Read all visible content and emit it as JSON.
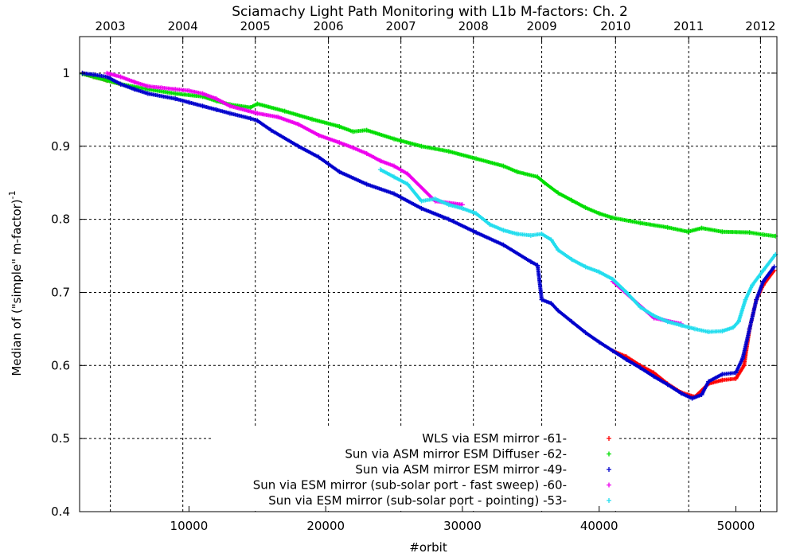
{
  "chart_data": {
    "type": "scatter",
    "title": "Sciamachy Light Path Monitoring with L1b M-factors: Ch. 2",
    "xlabel": "#orbit",
    "ylabel_main": "Median of (\"simple\" m-factor)",
    "ylabel_sup": "-1",
    "xlim": [
      2000,
      53000
    ],
    "ylim": [
      0.4,
      1.05
    ],
    "x_ticks": [
      10000,
      20000,
      30000,
      40000,
      50000
    ],
    "x_tick_labels": [
      "10000",
      "20000",
      "30000",
      "40000",
      "50000"
    ],
    "y_ticks": [
      0.4,
      0.5,
      0.6,
      0.7,
      0.8,
      0.9,
      1.0
    ],
    "y_tick_labels": [
      "0.4",
      "0.5",
      "0.6",
      "0.7",
      "0.8",
      "0.9",
      "1"
    ],
    "top_axis": {
      "labels": [
        "2003",
        "2004",
        "2005",
        "2006",
        "2007",
        "2008",
        "2009",
        "2010",
        "2011",
        "2012"
      ],
      "orbits": [
        4250,
        9550,
        14850,
        20200,
        25500,
        30800,
        35800,
        41200,
        46550,
        51800
      ]
    },
    "grid": true,
    "legend_position": "bottom-right",
    "series": [
      {
        "name": "WLS via ESM mirror -61-",
        "color": "#ff0000",
        "points": [
          [
            2200,
            1.0
          ],
          [
            3000,
            0.995
          ],
          [
            4000,
            0.99
          ],
          [
            5000,
            0.985
          ],
          [
            41000,
            0.62
          ],
          [
            42000,
            0.612
          ],
          [
            43000,
            0.6
          ],
          [
            44000,
            0.59
          ],
          [
            45000,
            0.575
          ],
          [
            46000,
            0.563
          ],
          [
            47000,
            0.557
          ],
          [
            48000,
            0.575
          ],
          [
            49000,
            0.58
          ],
          [
            50000,
            0.582
          ],
          [
            50600,
            0.6
          ],
          [
            51000,
            0.65
          ],
          [
            51500,
            0.69
          ],
          [
            52000,
            0.71
          ],
          [
            52800,
            0.73
          ]
        ]
      },
      {
        "name": "Sun via ASM mirror  ESM Diffuser -62-",
        "color": "#00dd00",
        "points": [
          [
            2200,
            0.999
          ],
          [
            3000,
            0.995
          ],
          [
            4000,
            0.99
          ],
          [
            5000,
            0.985
          ],
          [
            7000,
            0.978
          ],
          [
            9000,
            0.972
          ],
          [
            11000,
            0.968
          ],
          [
            12000,
            0.962
          ],
          [
            13000,
            0.957
          ],
          [
            14500,
            0.953
          ],
          [
            15000,
            0.958
          ],
          [
            17000,
            0.948
          ],
          [
            19000,
            0.937
          ],
          [
            21000,
            0.927
          ],
          [
            22000,
            0.92
          ],
          [
            23000,
            0.922
          ],
          [
            25000,
            0.91
          ],
          [
            27000,
            0.9
          ],
          [
            29000,
            0.893
          ],
          [
            31000,
            0.883
          ],
          [
            33000,
            0.873
          ],
          [
            34000,
            0.865
          ],
          [
            35500,
            0.858
          ],
          [
            36000,
            0.85
          ],
          [
            37000,
            0.836
          ],
          [
            38000,
            0.826
          ],
          [
            39000,
            0.816
          ],
          [
            40000,
            0.808
          ],
          [
            41000,
            0.802
          ],
          [
            43000,
            0.795
          ],
          [
            45000,
            0.789
          ],
          [
            46500,
            0.783
          ],
          [
            47500,
            0.788
          ],
          [
            49000,
            0.783
          ],
          [
            51000,
            0.782
          ],
          [
            52000,
            0.779
          ],
          [
            52900,
            0.777
          ]
        ]
      },
      {
        "name": "Sun via ASM mirror  ESM mirror -49-",
        "color": "#0000cc",
        "points": [
          [
            2200,
            1.0
          ],
          [
            3000,
            0.998
          ],
          [
            4000,
            0.995
          ],
          [
            5000,
            0.985
          ],
          [
            6000,
            0.978
          ],
          [
            7000,
            0.972
          ],
          [
            9000,
            0.965
          ],
          [
            10000,
            0.96
          ],
          [
            11000,
            0.955
          ],
          [
            12000,
            0.95
          ],
          [
            13000,
            0.945
          ],
          [
            14500,
            0.938
          ],
          [
            15000,
            0.935
          ],
          [
            16000,
            0.922
          ],
          [
            18000,
            0.9
          ],
          [
            19500,
            0.885
          ],
          [
            21000,
            0.865
          ],
          [
            23000,
            0.848
          ],
          [
            25000,
            0.835
          ],
          [
            27000,
            0.815
          ],
          [
            29000,
            0.8
          ],
          [
            31000,
            0.782
          ],
          [
            33000,
            0.765
          ],
          [
            35000,
            0.742
          ],
          [
            35500,
            0.737
          ],
          [
            35800,
            0.69
          ],
          [
            36500,
            0.685
          ],
          [
            37000,
            0.675
          ],
          [
            38000,
            0.66
          ],
          [
            39000,
            0.645
          ],
          [
            40000,
            0.632
          ],
          [
            41000,
            0.62
          ],
          [
            42000,
            0.608
          ],
          [
            43000,
            0.597
          ],
          [
            44000,
            0.585
          ],
          [
            45000,
            0.574
          ],
          [
            46000,
            0.562
          ],
          [
            46800,
            0.555
          ],
          [
            47500,
            0.56
          ],
          [
            48000,
            0.578
          ],
          [
            49000,
            0.588
          ],
          [
            50000,
            0.59
          ],
          [
            50500,
            0.61
          ],
          [
            51000,
            0.65
          ],
          [
            51500,
            0.69
          ],
          [
            52000,
            0.715
          ],
          [
            52800,
            0.735
          ]
        ]
      },
      {
        "name": "Sun via ESM mirror (sub-solar port - fast sweep) -60-",
        "color": "#ee00ee",
        "points": [
          [
            4000,
            1.0
          ],
          [
            5000,
            0.995
          ],
          [
            6000,
            0.988
          ],
          [
            7000,
            0.982
          ],
          [
            8000,
            0.98
          ],
          [
            9000,
            0.978
          ],
          [
            10000,
            0.976
          ],
          [
            11000,
            0.972
          ],
          [
            12000,
            0.965
          ],
          [
            13000,
            0.955
          ],
          [
            15000,
            0.945
          ],
          [
            16500,
            0.94
          ],
          [
            18000,
            0.93
          ],
          [
            19500,
            0.915
          ],
          [
            21000,
            0.905
          ],
          [
            22000,
            0.898
          ],
          [
            23000,
            0.89
          ],
          [
            24000,
            0.88
          ],
          [
            25000,
            0.873
          ],
          [
            26000,
            0.862
          ],
          [
            28000,
            0.825
          ],
          [
            30000,
            0.82
          ],
          [
            41000,
            0.715
          ],
          [
            44000,
            0.665
          ],
          [
            46000,
            0.657
          ]
        ]
      },
      {
        "name": "Sun via ESM mirror (sub-solar port - pointing) -53-",
        "color": "#22ddee",
        "points": [
          [
            24000,
            0.868
          ],
          [
            25000,
            0.858
          ],
          [
            26000,
            0.848
          ],
          [
            27000,
            0.825
          ],
          [
            28000,
            0.828
          ],
          [
            29000,
            0.82
          ],
          [
            30000,
            0.815
          ],
          [
            31000,
            0.808
          ],
          [
            32000,
            0.793
          ],
          [
            33000,
            0.785
          ],
          [
            34000,
            0.78
          ],
          [
            35000,
            0.778
          ],
          [
            35800,
            0.78
          ],
          [
            36500,
            0.772
          ],
          [
            37000,
            0.758
          ],
          [
            38000,
            0.745
          ],
          [
            39000,
            0.735
          ],
          [
            40000,
            0.728
          ],
          [
            41000,
            0.718
          ],
          [
            42000,
            0.7
          ],
          [
            43000,
            0.68
          ],
          [
            44000,
            0.668
          ],
          [
            45000,
            0.66
          ],
          [
            46000,
            0.655
          ],
          [
            47000,
            0.65
          ],
          [
            48000,
            0.646
          ],
          [
            49000,
            0.647
          ],
          [
            49800,
            0.652
          ],
          [
            50200,
            0.66
          ],
          [
            50700,
            0.69
          ],
          [
            51200,
            0.71
          ],
          [
            52000,
            0.73
          ],
          [
            52900,
            0.752
          ]
        ]
      }
    ]
  }
}
